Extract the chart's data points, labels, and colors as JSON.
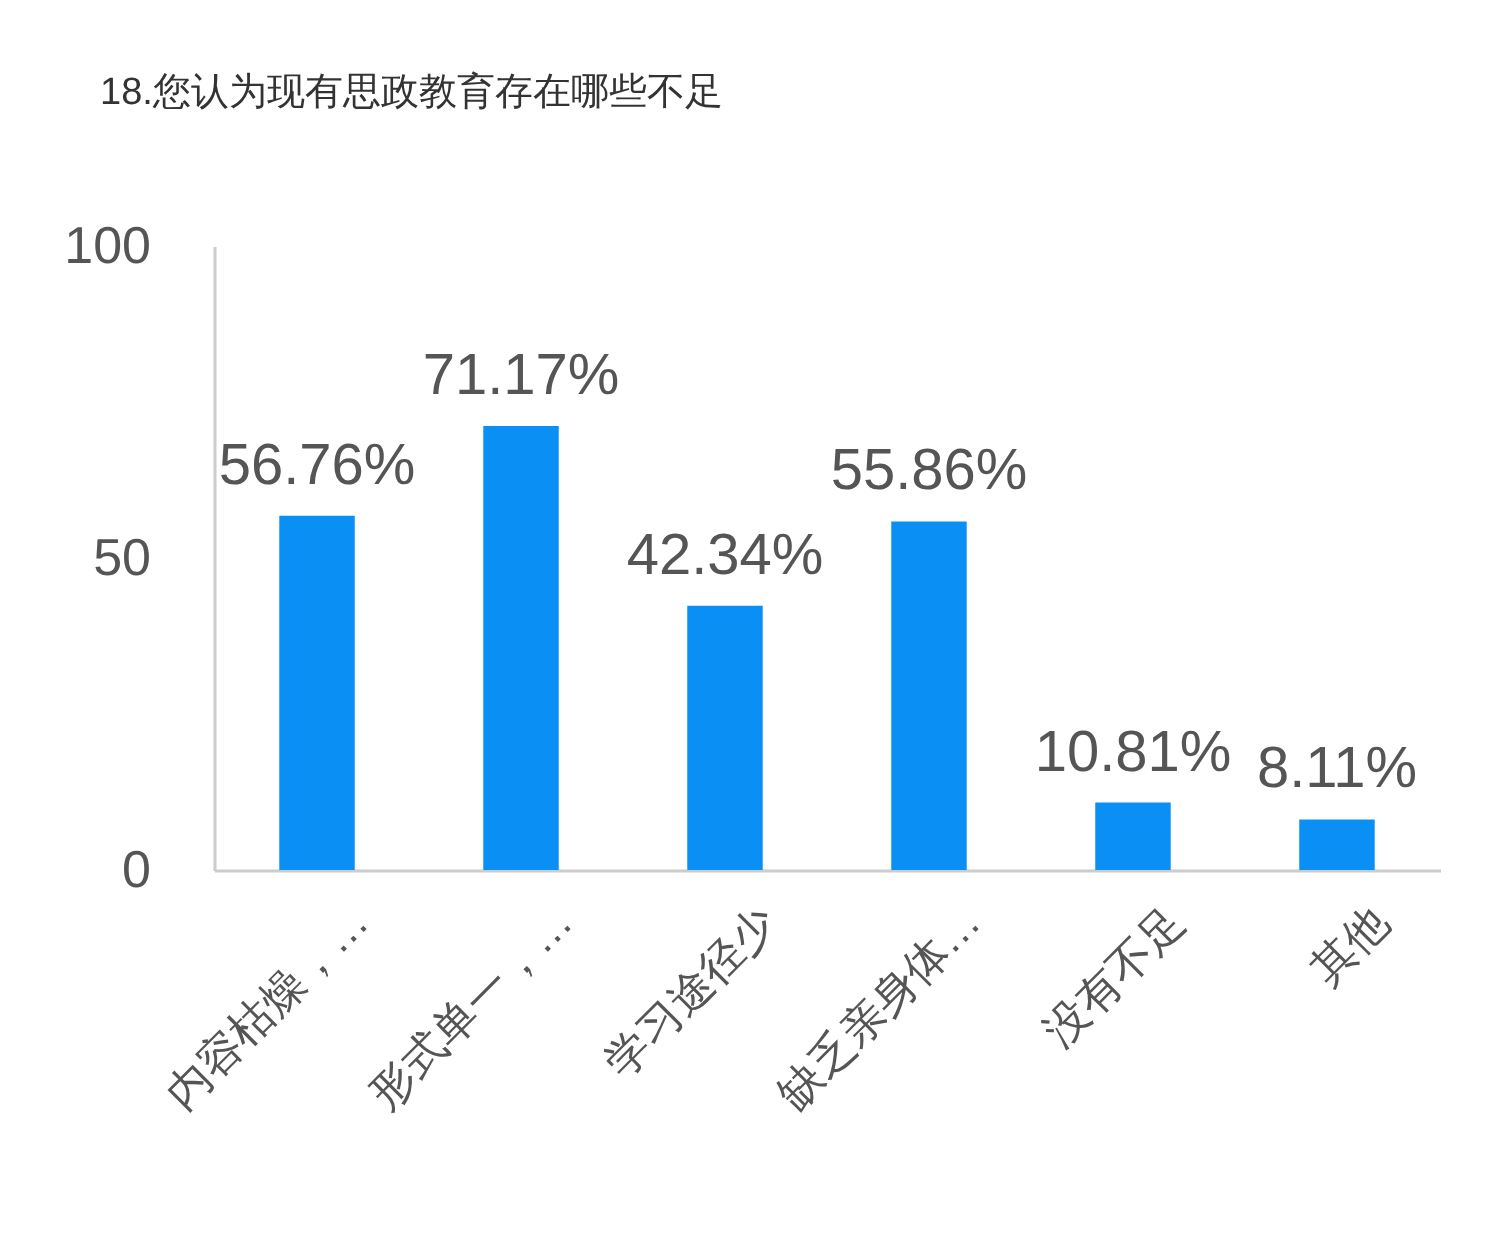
{
  "chart_data": {
    "type": "bar",
    "title": "18.您认为现有思政教育存在哪些不足",
    "categories": [
      "内容枯燥，…",
      "形式单一，…",
      "学习途径少",
      "缺乏亲身体…",
      "没有不足",
      "其他"
    ],
    "values": [
      56.76,
      71.17,
      42.34,
      55.86,
      10.81,
      8.11
    ],
    "value_labels": [
      "56.76%",
      "71.17%",
      "42.34%",
      "55.86%",
      "10.81%",
      "8.11%"
    ],
    "color": "#0a90f5",
    "ylim": [
      0,
      100
    ],
    "yticks": [
      0,
      50,
      100
    ],
    "grid": false
  }
}
